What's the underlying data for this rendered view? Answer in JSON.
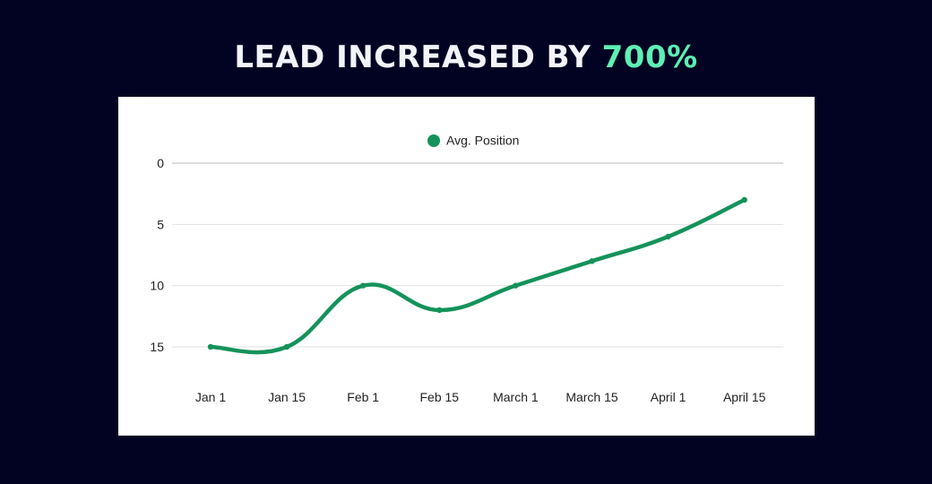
{
  "title": {
    "text": "LEAD INCREASED BY ",
    "highlight": "700%"
  },
  "colors": {
    "background": "#020322",
    "accent": "#5ef0b4",
    "series": "#14925a"
  },
  "chart_data": {
    "type": "line",
    "title": "LEAD INCREASED BY 700%",
    "xlabel": "",
    "ylabel": "",
    "categories": [
      "Jan 1",
      "Jan 15",
      "Feb 1",
      "Feb 15",
      "March 1",
      "March 15",
      "April 1",
      "April 15"
    ],
    "series": [
      {
        "name": "Avg. Position",
        "values": [
          15,
          15,
          10,
          12,
          10,
          8,
          6,
          3
        ]
      }
    ],
    "yticks": [
      0,
      5,
      10,
      15
    ],
    "ylim": [
      0,
      15
    ],
    "y_inverted": true,
    "grid": true,
    "legend": "top-center",
    "smooth": true
  }
}
